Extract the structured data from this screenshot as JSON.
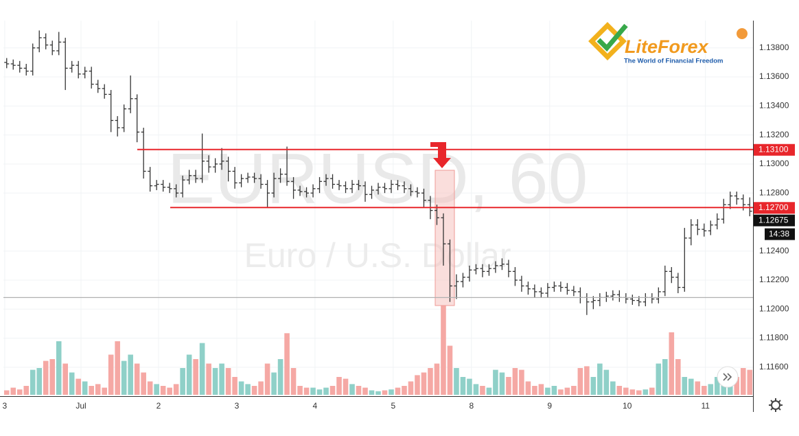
{
  "logo": {
    "name": "LiteForex",
    "tagline": "The World of Financial Freedom"
  },
  "chart_data": {
    "type": "ohlc",
    "symbol_watermark": "EURUSD, 60",
    "description_watermark": "Euro / U.S. Dollar",
    "bar_color": "#333333",
    "volume_up_color": "#8fd0c8",
    "volume_down_color": "#f5a8a4",
    "grid": true,
    "ylim": [
      1.1141,
      1.1413
    ],
    "yticks": [
      {
        "value": 1.116,
        "label": "1.11600"
      },
      {
        "value": 1.118,
        "label": "1.11800"
      },
      {
        "value": 1.12,
        "label": "1.12000"
      },
      {
        "value": 1.122,
        "label": "1.12200"
      },
      {
        "value": 1.124,
        "label": "1.12400"
      },
      {
        "value": 1.128,
        "label": "1.12800"
      },
      {
        "value": 1.13,
        "label": "1.13000"
      },
      {
        "value": 1.132,
        "label": "1.13200"
      },
      {
        "value": 1.134,
        "label": "1.13400"
      },
      {
        "value": 1.136,
        "label": "1.13600"
      },
      {
        "value": 1.138,
        "label": "1.13800"
      }
    ],
    "xlim": [
      -0.5,
      114.5
    ],
    "xticks": [
      {
        "value": -0.3,
        "label": "3"
      },
      {
        "value": 11.4,
        "label": "Jul"
      },
      {
        "value": 23.3,
        "label": "2"
      },
      {
        "value": 35.3,
        "label": "3"
      },
      {
        "value": 47.3,
        "label": "4"
      },
      {
        "value": 59.3,
        "label": "5"
      },
      {
        "value": 71.3,
        "label": "8"
      },
      {
        "value": 83.3,
        "label": "9"
      },
      {
        "value": 95.2,
        "label": "10"
      },
      {
        "value": 107.2,
        "label": "11"
      }
    ],
    "levels": [
      {
        "value": 1.131,
        "label": "1.13100",
        "color": "#e8262b"
      },
      {
        "value": 1.127,
        "label": "1.12700",
        "color": "#e8262b"
      }
    ],
    "reference_level": 1.1208,
    "last_price": {
      "value": 1.12675,
      "label": "1.12675"
    },
    "countdown": "14:38",
    "volume_max": 100,
    "ohlc": [
      [
        1.137,
        1.1373,
        1.1366,
        1.1369
      ],
      [
        1.1369,
        1.1372,
        1.1365,
        1.1368
      ],
      [
        1.1368,
        1.1371,
        1.1363,
        1.1366
      ],
      [
        1.1366,
        1.1369,
        1.1361,
        1.1364
      ],
      [
        1.1364,
        1.1383,
        1.1361,
        1.138
      ],
      [
        1.138,
        1.1392,
        1.1377,
        1.1387
      ],
      [
        1.1387,
        1.139,
        1.1379,
        1.1382
      ],
      [
        1.1382,
        1.1385,
        1.1375,
        1.1378
      ],
      [
        1.1378,
        1.1391,
        1.1375,
        1.1384
      ],
      [
        1.1384,
        1.1387,
        1.1351,
        1.1366
      ],
      [
        1.1366,
        1.1371,
        1.1363,
        1.1368
      ],
      [
        1.1368,
        1.1371,
        1.1359,
        1.1362
      ],
      [
        1.1362,
        1.1367,
        1.1359,
        1.1364
      ],
      [
        1.1364,
        1.1367,
        1.1352,
        1.1355
      ],
      [
        1.1355,
        1.1358,
        1.1349,
        1.1352
      ],
      [
        1.1352,
        1.1355,
        1.1345,
        1.1348
      ],
      [
        1.1348,
        1.1351,
        1.1322,
        1.133
      ],
      [
        1.133,
        1.1333,
        1.1319,
        1.1325
      ],
      [
        1.1325,
        1.1341,
        1.1322,
        1.1338
      ],
      [
        1.1338,
        1.1361,
        1.1335,
        1.1345
      ],
      [
        1.1345,
        1.1348,
        1.1315,
        1.1322
      ],
      [
        1.1322,
        1.1325,
        1.129,
        1.1295
      ],
      [
        1.1295,
        1.1298,
        1.1281,
        1.1285
      ],
      [
        1.1285,
        1.1289,
        1.1282,
        1.1286
      ],
      [
        1.1286,
        1.1289,
        1.1281,
        1.1284
      ],
      [
        1.1284,
        1.1287,
        1.128,
        1.1283
      ],
      [
        1.1283,
        1.1286,
        1.1277,
        1.128
      ],
      [
        1.128,
        1.1292,
        1.1277,
        1.1289
      ],
      [
        1.1289,
        1.1296,
        1.1286,
        1.1292
      ],
      [
        1.1292,
        1.1296,
        1.1287,
        1.129
      ],
      [
        1.129,
        1.1321,
        1.1287,
        1.1302
      ],
      [
        1.1302,
        1.1306,
        1.1294,
        1.1298
      ],
      [
        1.1298,
        1.1304,
        1.1294,
        1.13
      ],
      [
        1.13,
        1.1311,
        1.1296,
        1.1302
      ],
      [
        1.1302,
        1.1305,
        1.1288,
        1.1295
      ],
      [
        1.1295,
        1.1298,
        1.1283,
        1.1287
      ],
      [
        1.1287,
        1.1293,
        1.1284,
        1.129
      ],
      [
        1.129,
        1.1294,
        1.1287,
        1.1291
      ],
      [
        1.1291,
        1.1294,
        1.1287,
        1.129
      ],
      [
        1.129,
        1.1293,
        1.1283,
        1.1286
      ],
      [
        1.1286,
        1.1289,
        1.127,
        1.128
      ],
      [
        1.128,
        1.1294,
        1.1277,
        1.129
      ],
      [
        1.129,
        1.1297,
        1.1287,
        1.1293
      ],
      [
        1.1293,
        1.1312,
        1.1285,
        1.1288
      ],
      [
        1.1288,
        1.1291,
        1.1276,
        1.1282
      ],
      [
        1.1282,
        1.1285,
        1.1278,
        1.1281
      ],
      [
        1.1281,
        1.1284,
        1.1277,
        1.128
      ],
      [
        1.128,
        1.1286,
        1.1277,
        1.1283
      ],
      [
        1.1283,
        1.1291,
        1.128,
        1.1288
      ],
      [
        1.1288,
        1.1293,
        1.1285,
        1.129
      ],
      [
        1.129,
        1.1293,
        1.1283,
        1.1286
      ],
      [
        1.1286,
        1.1289,
        1.1282,
        1.1285
      ],
      [
        1.1285,
        1.1288,
        1.128,
        1.1283
      ],
      [
        1.1283,
        1.1289,
        1.128,
        1.1286
      ],
      [
        1.1286,
        1.1289,
        1.1282,
        1.1285
      ],
      [
        1.1285,
        1.1288,
        1.1274,
        1.1279
      ],
      [
        1.1279,
        1.1285,
        1.1276,
        1.1282
      ],
      [
        1.1282,
        1.1287,
        1.1279,
        1.1284
      ],
      [
        1.1284,
        1.1287,
        1.128,
        1.1283
      ],
      [
        1.1283,
        1.1289,
        1.128,
        1.1286
      ],
      [
        1.1286,
        1.1289,
        1.1282,
        1.1285
      ],
      [
        1.1285,
        1.1288,
        1.128,
        1.1283
      ],
      [
        1.1283,
        1.1286,
        1.1278,
        1.1281
      ],
      [
        1.1281,
        1.1284,
        1.1277,
        1.128
      ],
      [
        1.128,
        1.1283,
        1.127,
        1.1275
      ],
      [
        1.1275,
        1.1278,
        1.1262,
        1.1268
      ],
      [
        1.1268,
        1.1272,
        1.1258,
        1.1263
      ],
      [
        1.1263,
        1.1266,
        1.123,
        1.1245
      ],
      [
        1.1245,
        1.1248,
        1.1205,
        1.1216
      ],
      [
        1.1216,
        1.1224,
        1.1207,
        1.1219
      ],
      [
        1.1219,
        1.1225,
        1.1215,
        1.1222
      ],
      [
        1.1222,
        1.123,
        1.1219,
        1.1227
      ],
      [
        1.1227,
        1.1231,
        1.1224,
        1.1228
      ],
      [
        1.1228,
        1.1231,
        1.1222,
        1.1226
      ],
      [
        1.1226,
        1.1231,
        1.1223,
        1.1228
      ],
      [
        1.1228,
        1.1233,
        1.1225,
        1.123
      ],
      [
        1.123,
        1.1235,
        1.1227,
        1.1231
      ],
      [
        1.1231,
        1.1234,
        1.1222,
        1.1226
      ],
      [
        1.1226,
        1.1229,
        1.1216,
        1.122
      ],
      [
        1.122,
        1.1223,
        1.1212,
        1.1216
      ],
      [
        1.1216,
        1.1219,
        1.121,
        1.1214
      ],
      [
        1.1214,
        1.1217,
        1.1208,
        1.1212
      ],
      [
        1.1212,
        1.1215,
        1.1208,
        1.1211
      ],
      [
        1.1211,
        1.1218,
        1.1208,
        1.1215
      ],
      [
        1.1215,
        1.1219,
        1.1212,
        1.1216
      ],
      [
        1.1216,
        1.1219,
        1.1212,
        1.1215
      ],
      [
        1.1215,
        1.1218,
        1.121,
        1.1213
      ],
      [
        1.1213,
        1.1216,
        1.1209,
        1.1212
      ],
      [
        1.1212,
        1.1215,
        1.1204,
        1.1208
      ],
      [
        1.1208,
        1.1211,
        1.1196,
        1.1205
      ],
      [
        1.1205,
        1.1209,
        1.12,
        1.1206
      ],
      [
        1.1206,
        1.1211,
        1.1202,
        1.1208
      ],
      [
        1.1208,
        1.1212,
        1.1205,
        1.1209
      ],
      [
        1.1209,
        1.1213,
        1.1206,
        1.121
      ],
      [
        1.121,
        1.1213,
        1.1205,
        1.1208
      ],
      [
        1.1208,
        1.1211,
        1.1204,
        1.1207
      ],
      [
        1.1207,
        1.121,
        1.1203,
        1.1206
      ],
      [
        1.1206,
        1.1209,
        1.1202,
        1.1205
      ],
      [
        1.1205,
        1.1211,
        1.1202,
        1.1208
      ],
      [
        1.1208,
        1.1211,
        1.1204,
        1.1207
      ],
      [
        1.1207,
        1.1215,
        1.1204,
        1.1212
      ],
      [
        1.1212,
        1.123,
        1.1209,
        1.1226
      ],
      [
        1.1226,
        1.1229,
        1.1218,
        1.1222
      ],
      [
        1.1222,
        1.1225,
        1.1211,
        1.1215
      ],
      [
        1.1215,
        1.1256,
        1.1212,
        1.1249
      ],
      [
        1.1249,
        1.1262,
        1.1244,
        1.1258
      ],
      [
        1.1258,
        1.1262,
        1.1251,
        1.1255
      ],
      [
        1.1255,
        1.1259,
        1.125,
        1.1254
      ],
      [
        1.1254,
        1.1261,
        1.1251,
        1.1258
      ],
      [
        1.1258,
        1.1266,
        1.1255,
        1.1262
      ],
      [
        1.1262,
        1.1276,
        1.1259,
        1.1272
      ],
      [
        1.1272,
        1.1281,
        1.1269,
        1.1278
      ],
      [
        1.1278,
        1.1281,
        1.1272,
        1.1276
      ],
      [
        1.1276,
        1.1279,
        1.1268,
        1.1272
      ],
      [
        1.1272,
        1.1277,
        1.1264,
        1.12675
      ]
    ],
    "volume": [
      5,
      8,
      6,
      10,
      28,
      30,
      38,
      40,
      60,
      35,
      25,
      18,
      15,
      10,
      12,
      8,
      45,
      60,
      38,
      45,
      35,
      25,
      15,
      12,
      10,
      8,
      12,
      30,
      45,
      40,
      58,
      35,
      30,
      35,
      30,
      20,
      15,
      12,
      10,
      15,
      35,
      25,
      40,
      69,
      30,
      10,
      8,
      8,
      6,
      8,
      10,
      20,
      18,
      12,
      10,
      8,
      5,
      4,
      5,
      6,
      8,
      10,
      15,
      22,
      25,
      30,
      35,
      100,
      55,
      30,
      20,
      18,
      12,
      10,
      8,
      28,
      25,
      20,
      30,
      28,
      15,
      10,
      12,
      8,
      10,
      6,
      8,
      10,
      30,
      32,
      20,
      35,
      28,
      15,
      10,
      8,
      6,
      5,
      6,
      8,
      35,
      40,
      70,
      40,
      20,
      18,
      15,
      10,
      12,
      20,
      25,
      28,
      20,
      30,
      28
    ]
  }
}
